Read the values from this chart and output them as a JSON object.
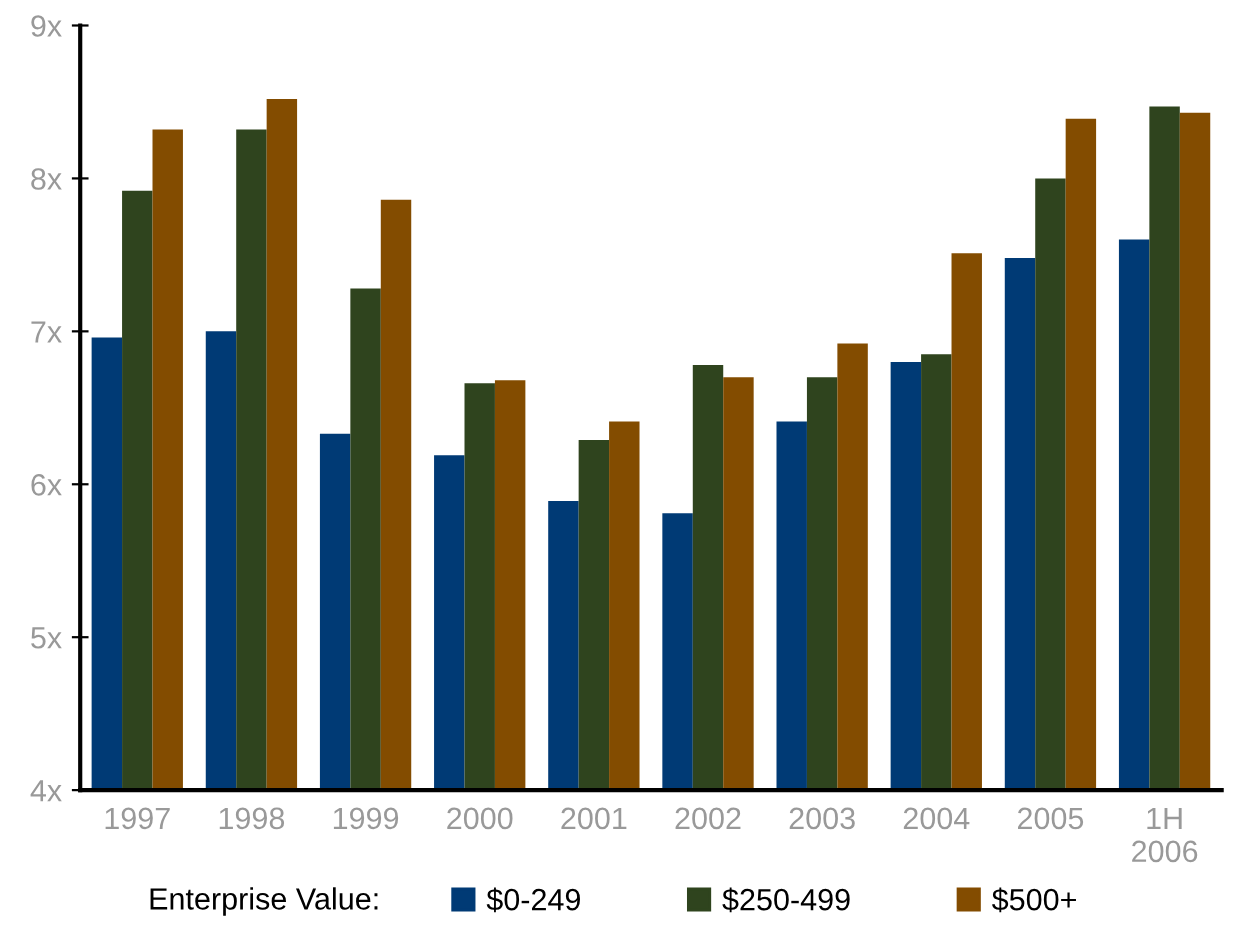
{
  "chart_data": {
    "type": "bar",
    "categories": [
      "1997",
      "1998",
      "1999",
      "2000",
      "2001",
      "2002",
      "2003",
      "2004",
      "2005",
      "1H\n2006"
    ],
    "series": [
      {
        "name": "$0-249",
        "color": "#003a75",
        "values": [
          6.96,
          7.0,
          6.33,
          6.19,
          5.89,
          5.81,
          6.41,
          6.8,
          7.48,
          7.6
        ]
      },
      {
        "name": "$250-499",
        "color": "#2f441e",
        "values": [
          7.92,
          8.32,
          7.28,
          6.66,
          6.29,
          6.78,
          6.7,
          6.85,
          8.0,
          8.47
        ]
      },
      {
        "name": "$500+",
        "color": "#834c00",
        "values": [
          8.32,
          8.52,
          7.86,
          6.68,
          6.41,
          6.7,
          6.92,
          7.51,
          8.39,
          8.43
        ]
      }
    ],
    "legend_title": "Enterprise Value:",
    "ylim": [
      4,
      9
    ],
    "yticks": [
      {
        "value": 4,
        "label": "4x"
      },
      {
        "value": 5,
        "label": "5x"
      },
      {
        "value": 6,
        "label": "6x"
      },
      {
        "value": 7,
        "label": "7x"
      },
      {
        "value": 8,
        "label": "8x"
      },
      {
        "value": 9,
        "label": "9x"
      }
    ],
    "grid": false,
    "legend": "bottom"
  }
}
